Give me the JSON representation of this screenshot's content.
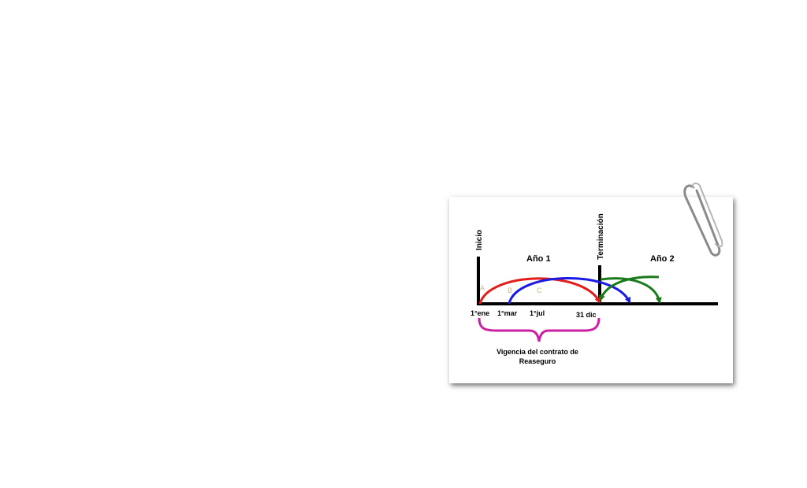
{
  "labels": {
    "inicio": "Inicio",
    "terminacion": "Terminación",
    "year1": "Año 1",
    "year2": "Año 2",
    "curve_a": "A",
    "curve_b": "B",
    "curve_c": "C",
    "date_jan": "1°ene",
    "date_mar": "1°mar",
    "date_jul": "1°jul",
    "date_dec": "31 dic",
    "vigencia_line1": "Vigencia del contrato de",
    "vigencia_line2": "Reaseguro"
  },
  "colors": {
    "curve_a": "#e41b1b",
    "curve_b": "#1a1ae6",
    "curve_green": "#1a7a1a",
    "brace": "#cc1fa3",
    "curve_letters": "#c8b98a"
  }
}
